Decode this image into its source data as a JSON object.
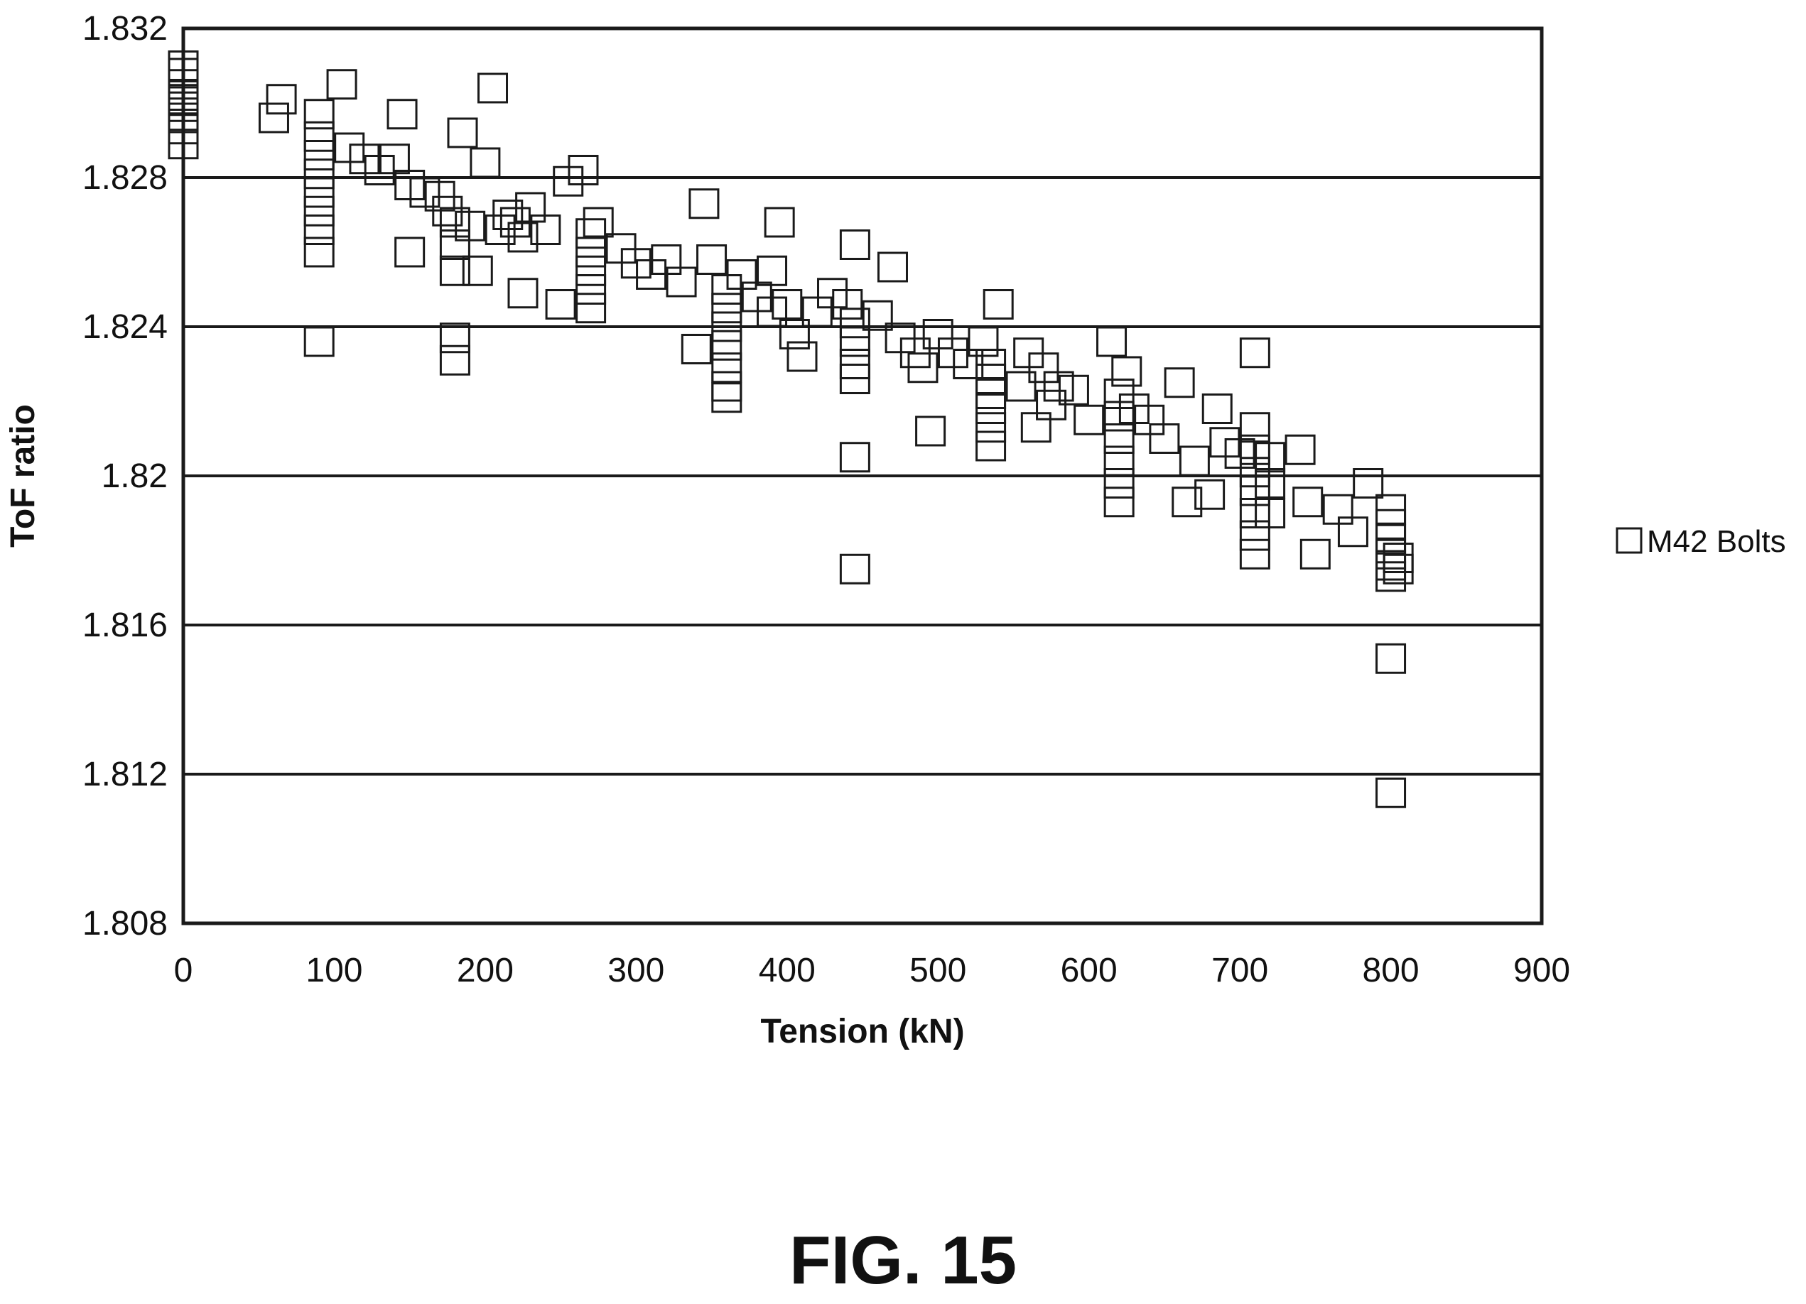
{
  "figure": {
    "caption": "FIG. 15"
  },
  "chart_data": {
    "type": "scatter",
    "title": "",
    "xlabel": "Tension (kN)",
    "ylabel": "ToF ratio",
    "xlim": [
      0,
      900
    ],
    "ylim": [
      1.808,
      1.832
    ],
    "x_ticks": [
      "0",
      "100",
      "200",
      "300",
      "400",
      "500",
      "600",
      "700",
      "800",
      "900"
    ],
    "y_ticks": [
      "1.808",
      "1.812",
      "1.816",
      "1.82",
      "1.824",
      "1.828",
      "1.832"
    ],
    "grid": "horizontal",
    "legend_position": "right",
    "marker": "open-square",
    "colors": {
      "marker": "#1a1a1a",
      "grid": "#1a1a1a",
      "background": "#ffffff"
    },
    "series": [
      {
        "name": "M42 Bolts",
        "points": [
          [
            0,
            1.8296
          ],
          [
            0,
            1.8299
          ],
          [
            0,
            1.8302
          ],
          [
            0,
            1.8305
          ],
          [
            0,
            1.8308
          ],
          [
            0,
            1.8293
          ],
          [
            0,
            1.8289
          ],
          [
            0,
            1.831
          ],
          [
            0,
            1.8301
          ],
          [
            60,
            1.8296
          ],
          [
            65,
            1.8301
          ],
          [
            90,
            1.8297
          ],
          [
            90,
            1.8291
          ],
          [
            90,
            1.8286
          ],
          [
            90,
            1.8281
          ],
          [
            90,
            1.8276
          ],
          [
            90,
            1.8271
          ],
          [
            90,
            1.8266
          ],
          [
            90,
            1.826
          ],
          [
            90,
            1.8236
          ],
          [
            105,
            1.8305
          ],
          [
            110,
            1.8288
          ],
          [
            120,
            1.8285
          ],
          [
            130,
            1.8282
          ],
          [
            140,
            1.8285
          ],
          [
            145,
            1.8297
          ],
          [
            150,
            1.8278
          ],
          [
            150,
            1.826
          ],
          [
            160,
            1.8276
          ],
          [
            170,
            1.8275
          ],
          [
            175,
            1.8271
          ],
          [
            180,
            1.8268
          ],
          [
            180,
            1.8262
          ],
          [
            180,
            1.8255
          ],
          [
            180,
            1.8237
          ],
          [
            180,
            1.8231
          ],
          [
            185,
            1.8292
          ],
          [
            190,
            1.8267
          ],
          [
            195,
            1.8255
          ],
          [
            200,
            1.8284
          ],
          [
            205,
            1.8304
          ],
          [
            210,
            1.8266
          ],
          [
            215,
            1.827
          ],
          [
            220,
            1.8268
          ],
          [
            225,
            1.8264
          ],
          [
            225,
            1.8249
          ],
          [
            230,
            1.8272
          ],
          [
            240,
            1.8266
          ],
          [
            250,
            1.8246
          ],
          [
            255,
            1.8279
          ],
          [
            265,
            1.8282
          ],
          [
            270,
            1.8265
          ],
          [
            270,
            1.826
          ],
          [
            270,
            1.8255
          ],
          [
            270,
            1.825
          ],
          [
            270,
            1.8245
          ],
          [
            275,
            1.8268
          ],
          [
            290,
            1.8261
          ],
          [
            300,
            1.8257
          ],
          [
            310,
            1.8254
          ],
          [
            320,
            1.8258
          ],
          [
            330,
            1.8252
          ],
          [
            340,
            1.8234
          ],
          [
            345,
            1.8273
          ],
          [
            350,
            1.8258
          ],
          [
            360,
            1.825
          ],
          [
            360,
            1.8245
          ],
          [
            360,
            1.824
          ],
          [
            360,
            1.8235
          ],
          [
            360,
            1.8229
          ],
          [
            360,
            1.8224
          ],
          [
            360,
            1.8221
          ],
          [
            370,
            1.8254
          ],
          [
            380,
            1.8248
          ],
          [
            390,
            1.8255
          ],
          [
            390,
            1.8244
          ],
          [
            395,
            1.8268
          ],
          [
            400,
            1.8246
          ],
          [
            405,
            1.8238
          ],
          [
            410,
            1.8232
          ],
          [
            420,
            1.8244
          ],
          [
            430,
            1.8249
          ],
          [
            440,
            1.8246
          ],
          [
            445,
            1.8241
          ],
          [
            445,
            1.8236
          ],
          [
            445,
            1.823
          ],
          [
            445,
            1.8226
          ],
          [
            445,
            1.8262
          ],
          [
            445,
            1.8205
          ],
          [
            445,
            1.8175
          ],
          [
            460,
            1.8243
          ],
          [
            470,
            1.8256
          ],
          [
            475,
            1.8237
          ],
          [
            485,
            1.8233
          ],
          [
            490,
            1.8229
          ],
          [
            495,
            1.8212
          ],
          [
            500,
            1.8238
          ],
          [
            510,
            1.8233
          ],
          [
            520,
            1.823
          ],
          [
            530,
            1.8236
          ],
          [
            535,
            1.823
          ],
          [
            535,
            1.8226
          ],
          [
            535,
            1.8222
          ],
          [
            535,
            1.8218
          ],
          [
            535,
            1.8213
          ],
          [
            535,
            1.8208
          ],
          [
            540,
            1.8246
          ],
          [
            555,
            1.8224
          ],
          [
            560,
            1.8233
          ],
          [
            565,
            1.8213
          ],
          [
            570,
            1.8229
          ],
          [
            575,
            1.8219
          ],
          [
            580,
            1.8224
          ],
          [
            590,
            1.8223
          ],
          [
            600,
            1.8215
          ],
          [
            615,
            1.8236
          ],
          [
            620,
            1.8222
          ],
          [
            620,
            1.8216
          ],
          [
            620,
            1.821
          ],
          [
            620,
            1.8204
          ],
          [
            620,
            1.8198
          ],
          [
            620,
            1.8193
          ],
          [
            625,
            1.8228
          ],
          [
            630,
            1.8218
          ],
          [
            640,
            1.8215
          ],
          [
            650,
            1.821
          ],
          [
            660,
            1.8225
          ],
          [
            665,
            1.8193
          ],
          [
            670,
            1.8204
          ],
          [
            680,
            1.8195
          ],
          [
            685,
            1.8218
          ],
          [
            690,
            1.8209
          ],
          [
            700,
            1.8206
          ],
          [
            710,
            1.8233
          ],
          [
            710,
            1.8213
          ],
          [
            710,
            1.8207
          ],
          [
            710,
            1.8201
          ],
          [
            710,
            1.8196
          ],
          [
            710,
            1.819
          ],
          [
            710,
            1.8184
          ],
          [
            710,
            1.8179
          ],
          [
            720,
            1.8205
          ],
          [
            720,
            1.8198
          ],
          [
            720,
            1.819
          ],
          [
            740,
            1.8207
          ],
          [
            745,
            1.8193
          ],
          [
            750,
            1.8179
          ],
          [
            765,
            1.8191
          ],
          [
            775,
            1.8185
          ],
          [
            785,
            1.8198
          ],
          [
            800,
            1.8191
          ],
          [
            800,
            1.8187
          ],
          [
            800,
            1.8183
          ],
          [
            800,
            1.8179
          ],
          [
            800,
            1.8176
          ],
          [
            800,
            1.8173
          ],
          [
            800,
            1.8151
          ],
          [
            800,
            1.8115
          ],
          [
            805,
            1.8178
          ],
          [
            805,
            1.8175
          ]
        ]
      }
    ]
  }
}
